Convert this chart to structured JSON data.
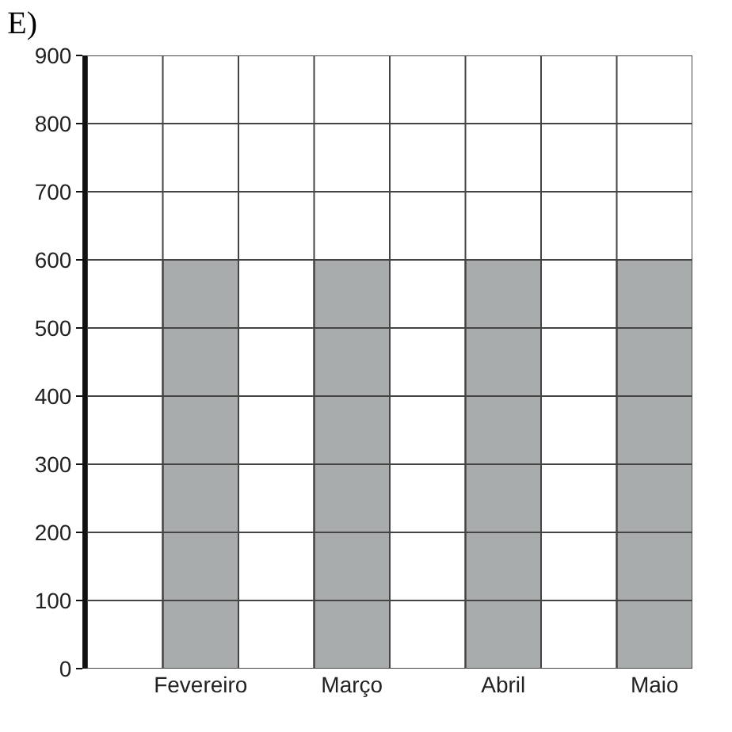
{
  "chart_data": {
    "type": "bar",
    "title": "E)",
    "categories": [
      null,
      "Fevereiro",
      null,
      "Março",
      null,
      "Abril",
      null,
      "Maio"
    ],
    "values": [
      null,
      600,
      null,
      600,
      null,
      600,
      null,
      600
    ],
    "color": "#a8acad",
    "ylim": [
      0,
      900
    ],
    "yticks": [
      0,
      100,
      200,
      300,
      400,
      500,
      600,
      700,
      800,
      900
    ],
    "grid": true
  }
}
